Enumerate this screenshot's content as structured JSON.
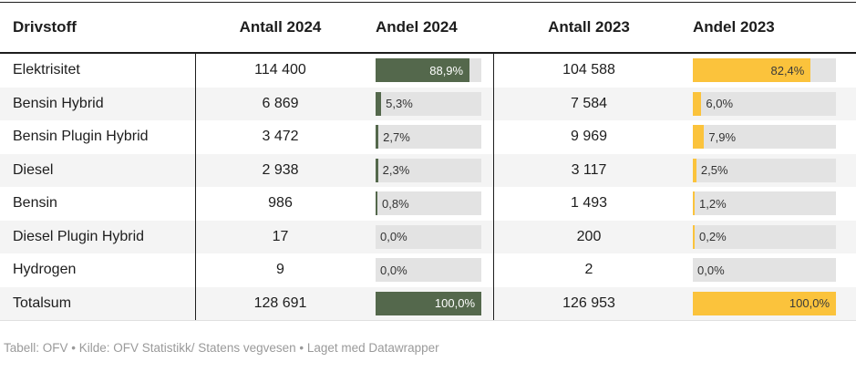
{
  "chart_data": {
    "type": "table",
    "columns": [
      "Drivstoff",
      "Antall 2024",
      "Andel 2024",
      "Antall 2023",
      "Andel 2023"
    ],
    "rows": [
      {
        "label": "Elektrisitet",
        "antall_2024": "114 400",
        "andel_2024": "88,9%",
        "andel_2024_pct": 88.9,
        "antall_2023": "104 588",
        "andel_2023": "82,4%",
        "andel_2023_pct": 82.4
      },
      {
        "label": "Bensin Hybrid",
        "antall_2024": "6 869",
        "andel_2024": "5,3%",
        "andel_2024_pct": 5.3,
        "antall_2023": "7 584",
        "andel_2023": "6,0%",
        "andel_2023_pct": 6.0
      },
      {
        "label": "Bensin Plugin Hybrid",
        "antall_2024": "3 472",
        "andel_2024": "2,7%",
        "andel_2024_pct": 2.7,
        "antall_2023": "9 969",
        "andel_2023": "7,9%",
        "andel_2023_pct": 7.9
      },
      {
        "label": "Diesel",
        "antall_2024": "2 938",
        "andel_2024": "2,3%",
        "andel_2024_pct": 2.3,
        "antall_2023": "3 117",
        "andel_2023": "2,5%",
        "andel_2023_pct": 2.5
      },
      {
        "label": "Bensin",
        "antall_2024": "986",
        "andel_2024": "0,8%",
        "andel_2024_pct": 0.8,
        "antall_2023": "1 493",
        "andel_2023": "1,2%",
        "andel_2023_pct": 1.2
      },
      {
        "label": "Diesel Plugin Hybrid",
        "antall_2024": "17",
        "andel_2024": "0,0%",
        "andel_2024_pct": 0.0,
        "antall_2023": "200",
        "andel_2023": "0,2%",
        "andel_2023_pct": 0.2
      },
      {
        "label": "Hydrogen",
        "antall_2024": "9",
        "andel_2024": "0,0%",
        "andel_2024_pct": 0.0,
        "antall_2023": "2",
        "andel_2023": "0,0%",
        "andel_2023_pct": 0.0
      },
      {
        "label": "Totalsum",
        "antall_2024": "128 691",
        "andel_2024": "100,0%",
        "andel_2024_pct": 100.0,
        "antall_2023": "126 953",
        "andel_2023": "100,0%",
        "andel_2023_pct": 100.0
      }
    ],
    "layout": {
      "legend_position": "none",
      "grid": "off",
      "bar_scale_max": 100
    },
    "colors": {
      "bar_2024": "#54684c",
      "bar_2023": "#fbc33c",
      "bar_track": "#e3e3e3",
      "row_stripe": "#f4f4f4",
      "rule": "#1d1d1d"
    },
    "footer": "Tabell: OFV • Kilde: OFV Statistikk/ Statens vegvesen • Laget med Datawrapper"
  }
}
